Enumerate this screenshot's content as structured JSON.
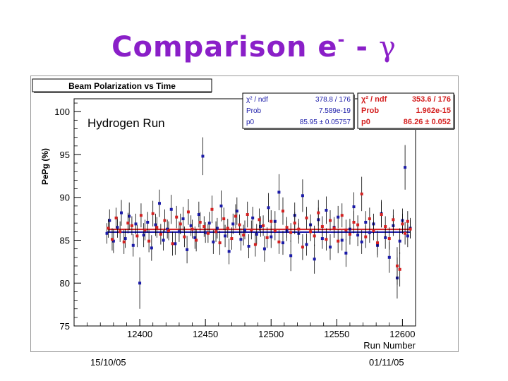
{
  "slide": {
    "title_main": "Comparison e",
    "title_sup": "-",
    "title_dash": " - ",
    "title_gamma": "γ"
  },
  "dates": {
    "start": "15/10/05",
    "end": "01/11/05"
  },
  "colors": {
    "title": "#8a1fc8",
    "electron": "#1a1aa8",
    "photon": "#d42020",
    "fit_electron": "#1a1aa8",
    "fit_photon": "#d42020"
  },
  "chart_data": {
    "type": "scatter",
    "title": "Beam Polarization vs Time",
    "annotation": "Hydrogen Run",
    "xlabel": "Run Number",
    "ylabel": "PePg (%)",
    "xlim": [
      12350,
      12610
    ],
    "ylim": [
      75,
      101.5
    ],
    "xticks": [
      12400,
      12450,
      12500,
      12550,
      12600
    ],
    "yticks": [
      75,
      80,
      85,
      90,
      95,
      100
    ],
    "fit_boxes": [
      {
        "series": "electron",
        "rows": [
          {
            "label": "χ² / ndf",
            "value": "378.8 / 176"
          },
          {
            "label": "Prob",
            "value": "7.589e-19"
          },
          {
            "label": "p0",
            "value": "85.95 ± 0.05757"
          }
        ]
      },
      {
        "series": "photon",
        "rows": [
          {
            "label": "χ² / ndf",
            "value": "353.6 / 176"
          },
          {
            "label": "Prob",
            "value": "1.962e-15"
          },
          {
            "label": "p0",
            "value": "86.26 ± 0.052"
          }
        ]
      }
    ],
    "series": [
      {
        "name": "electron",
        "fit_p0": 85.95,
        "points": [
          [
            12375,
            85.8,
            1.2
          ],
          [
            12377,
            87.3,
            1.3
          ],
          [
            12380,
            84.9,
            1.4
          ],
          [
            12383,
            86.5,
            1.2
          ],
          [
            12386,
            88.2,
            1.5
          ],
          [
            12389,
            85.2,
            1.1
          ],
          [
            12392,
            87.8,
            1.6
          ],
          [
            12395,
            84.4,
            1.3
          ],
          [
            12397,
            86.9,
            1.2
          ],
          [
            12400,
            80.0,
            3.0
          ],
          [
            12403,
            85.6,
            1.4
          ],
          [
            12406,
            87.1,
            1.2
          ],
          [
            12409,
            84.1,
            1.5
          ],
          [
            12412,
            86.8,
            1.3
          ],
          [
            12415,
            89.3,
            1.6
          ],
          [
            12418,
            85.0,
            1.2
          ],
          [
            12421,
            86.3,
            1.1
          ],
          [
            12424,
            88.6,
            1.7
          ],
          [
            12427,
            84.6,
            1.3
          ],
          [
            12430,
            86.0,
            1.2
          ],
          [
            12433,
            87.5,
            1.4
          ],
          [
            12436,
            83.9,
            1.6
          ],
          [
            12439,
            86.7,
            1.2
          ],
          [
            12442,
            85.3,
            1.3
          ],
          [
            12445,
            88.0,
            1.5
          ],
          [
            12448,
            94.8,
            2.2
          ],
          [
            12450,
            85.9,
            1.2
          ],
          [
            12453,
            87.0,
            1.3
          ],
          [
            12456,
            84.8,
            1.4
          ],
          [
            12459,
            86.4,
            1.2
          ],
          [
            12462,
            89.0,
            1.8
          ],
          [
            12465,
            85.5,
            1.3
          ],
          [
            12468,
            83.7,
            1.5
          ],
          [
            12471,
            86.9,
            1.2
          ],
          [
            12474,
            88.4,
            1.6
          ],
          [
            12477,
            85.1,
            1.3
          ],
          [
            12480,
            86.2,
            1.1
          ],
          [
            12483,
            84.3,
            1.4
          ],
          [
            12486,
            87.6,
            1.3
          ],
          [
            12489,
            85.7,
            1.2
          ],
          [
            12492,
            86.6,
            1.2
          ],
          [
            12495,
            84.0,
            1.5
          ],
          [
            12498,
            88.8,
            1.7
          ],
          [
            12500,
            85.4,
            1.3
          ],
          [
            12503,
            87.2,
            1.2
          ],
          [
            12506,
            90.6,
            2.1
          ],
          [
            12509,
            84.7,
            1.4
          ],
          [
            12512,
            86.1,
            1.2
          ],
          [
            12515,
            83.2,
            1.8
          ],
          [
            12518,
            87.9,
            1.5
          ],
          [
            12521,
            85.8,
            1.2
          ],
          [
            12524,
            90.2,
            1.9
          ],
          [
            12527,
            84.5,
            1.3
          ],
          [
            12530,
            86.8,
            1.2
          ],
          [
            12533,
            82.8,
            1.7
          ],
          [
            12536,
            87.4,
            1.4
          ],
          [
            12539,
            85.2,
            1.2
          ],
          [
            12542,
            88.5,
            1.6
          ],
          [
            12545,
            84.2,
            1.5
          ],
          [
            12548,
            86.5,
            1.2
          ],
          [
            12551,
            87.7,
            1.3
          ],
          [
            12554,
            85.0,
            1.2
          ],
          [
            12557,
            83.5,
            1.6
          ],
          [
            12560,
            86.3,
            1.2
          ],
          [
            12563,
            88.9,
            1.7
          ],
          [
            12566,
            85.6,
            1.3
          ],
          [
            12569,
            84.8,
            1.4
          ],
          [
            12572,
            87.1,
            1.3
          ],
          [
            12575,
            85.9,
            1.2
          ],
          [
            12578,
            86.9,
            1.2
          ],
          [
            12581,
            84.4,
            1.4
          ],
          [
            12584,
            88.1,
            1.6
          ],
          [
            12587,
            85.3,
            1.3
          ],
          [
            12590,
            83.0,
            1.8
          ],
          [
            12593,
            86.7,
            1.2
          ],
          [
            12596,
            80.6,
            2.4
          ],
          [
            12598,
            84.9,
            1.5
          ],
          [
            12600,
            87.3,
            1.4
          ],
          [
            12602,
            93.5,
            2.6
          ],
          [
            12604,
            85.5,
            1.3
          ],
          [
            12606,
            86.4,
            1.2
          ]
        ]
      },
      {
        "name": "photon",
        "fit_p0": 86.26,
        "points": [
          [
            12376,
            86.4,
            1.1
          ],
          [
            12379,
            85.1,
            1.3
          ],
          [
            12382,
            87.6,
            1.2
          ],
          [
            12385,
            86.0,
            1.2
          ],
          [
            12388,
            84.8,
            1.4
          ],
          [
            12391,
            87.0,
            1.2
          ],
          [
            12394,
            86.7,
            1.1
          ],
          [
            12398,
            85.5,
            1.3
          ],
          [
            12401,
            87.9,
            1.4
          ],
          [
            12404,
            86.2,
            1.2
          ],
          [
            12407,
            84.9,
            1.3
          ],
          [
            12410,
            88.1,
            1.5
          ],
          [
            12413,
            86.5,
            1.2
          ],
          [
            12416,
            85.7,
            1.2
          ],
          [
            12419,
            87.3,
            1.3
          ],
          [
            12422,
            86.1,
            1.1
          ],
          [
            12425,
            84.6,
            1.4
          ],
          [
            12428,
            87.7,
            1.3
          ],
          [
            12431,
            86.9,
            1.2
          ],
          [
            12434,
            85.4,
            1.2
          ],
          [
            12437,
            88.3,
            1.5
          ],
          [
            12440,
            86.3,
            1.1
          ],
          [
            12443,
            85.0,
            1.3
          ],
          [
            12446,
            87.1,
            1.2
          ],
          [
            12449,
            86.6,
            1.2
          ],
          [
            12452,
            85.8,
            1.1
          ],
          [
            12455,
            88.6,
            1.6
          ],
          [
            12458,
            86.0,
            1.2
          ],
          [
            12461,
            84.7,
            1.4
          ],
          [
            12464,
            87.5,
            1.3
          ],
          [
            12467,
            86.4,
            1.1
          ],
          [
            12470,
            85.2,
            1.3
          ],
          [
            12473,
            87.8,
            1.4
          ],
          [
            12476,
            86.8,
            1.2
          ],
          [
            12479,
            85.6,
            1.2
          ],
          [
            12482,
            88.0,
            1.5
          ],
          [
            12485,
            86.2,
            1.1
          ],
          [
            12488,
            84.5,
            1.4
          ],
          [
            12491,
            87.4,
            1.3
          ],
          [
            12494,
            86.7,
            1.2
          ],
          [
            12497,
            85.3,
            1.2
          ],
          [
            12500,
            87.2,
            1.3
          ],
          [
            12503,
            86.1,
            1.1
          ],
          [
            12506,
            84.8,
            1.4
          ],
          [
            12509,
            88.4,
            1.6
          ],
          [
            12512,
            86.5,
            1.2
          ],
          [
            12515,
            85.9,
            1.1
          ],
          [
            12518,
            87.0,
            1.3
          ],
          [
            12521,
            86.3,
            1.2
          ],
          [
            12524,
            84.2,
            1.5
          ],
          [
            12527,
            87.6,
            1.3
          ],
          [
            12530,
            86.0,
            1.1
          ],
          [
            12533,
            85.5,
            1.2
          ],
          [
            12536,
            88.2,
            1.5
          ],
          [
            12539,
            86.6,
            1.2
          ],
          [
            12542,
            85.1,
            1.3
          ],
          [
            12545,
            87.3,
            1.2
          ],
          [
            12548,
            86.4,
            1.1
          ],
          [
            12551,
            84.9,
            1.4
          ],
          [
            12554,
            87.9,
            1.4
          ],
          [
            12557,
            86.2,
            1.2
          ],
          [
            12560,
            85.7,
            1.2
          ],
          [
            12563,
            87.1,
            1.3
          ],
          [
            12566,
            86.8,
            1.1
          ],
          [
            12569,
            90.4,
            2.0
          ],
          [
            12572,
            85.4,
            1.3
          ],
          [
            12575,
            87.5,
            1.3
          ],
          [
            12578,
            86.1,
            1.1
          ],
          [
            12581,
            84.7,
            1.4
          ],
          [
            12584,
            88.0,
            1.5
          ],
          [
            12587,
            86.6,
            1.2
          ],
          [
            12590,
            85.2,
            1.3
          ],
          [
            12593,
            87.4,
            1.2
          ],
          [
            12596,
            82.0,
            2.2
          ],
          [
            12598,
            81.6,
            2.0
          ],
          [
            12600,
            86.9,
            1.2
          ],
          [
            12602,
            85.8,
            1.3
          ],
          [
            12604,
            87.2,
            1.2
          ],
          [
            12606,
            86.3,
            1.1
          ]
        ]
      }
    ]
  }
}
